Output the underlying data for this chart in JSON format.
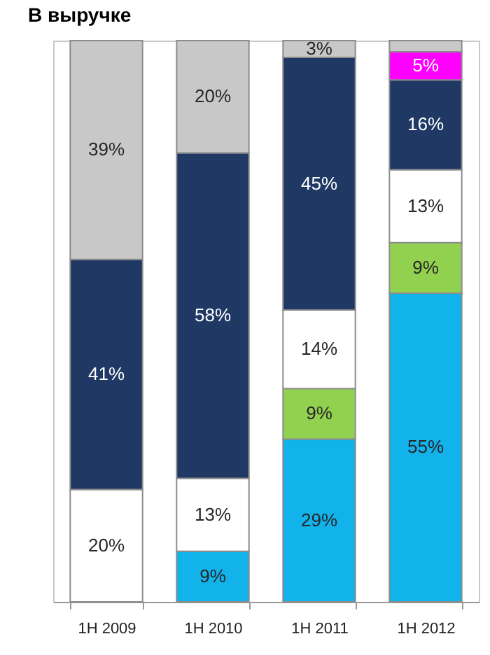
{
  "chart_data": {
    "type": "bar",
    "title": "В выручке",
    "stacked": true,
    "categories": [
      "1H 2009",
      "1H 2010",
      "1H 2011",
      "1H 2012"
    ],
    "ylim": [
      0,
      100
    ],
    "tick_labels": "x",
    "series": [
      {
        "color": "#12b2ea",
        "values": [
          null,
          9,
          29,
          55
        ],
        "value_labels": [
          null,
          "9%",
          "29%",
          "55%"
        ]
      },
      {
        "color": "#92d050",
        "values": [
          null,
          null,
          9,
          9
        ],
        "value_labels": [
          null,
          null,
          "9%",
          "9%"
        ]
      },
      {
        "color": "#ffffff",
        "values": [
          20,
          13,
          14,
          13
        ],
        "value_labels": [
          "20%",
          "13%",
          "14%",
          "13%"
        ]
      },
      {
        "color": "#1f3864",
        "values": [
          41,
          58,
          45,
          16
        ],
        "value_labels": [
          "41%",
          "58%",
          "45%",
          "16%"
        ]
      },
      {
        "color": "#ff00ff",
        "values": [
          null,
          null,
          null,
          5
        ],
        "value_labels": [
          null,
          null,
          null,
          "5%"
        ]
      },
      {
        "color": "#c8c8c8",
        "values": [
          39,
          20,
          3,
          2
        ],
        "value_labels": [
          "39%",
          "20%",
          "3%",
          null
        ]
      }
    ]
  }
}
